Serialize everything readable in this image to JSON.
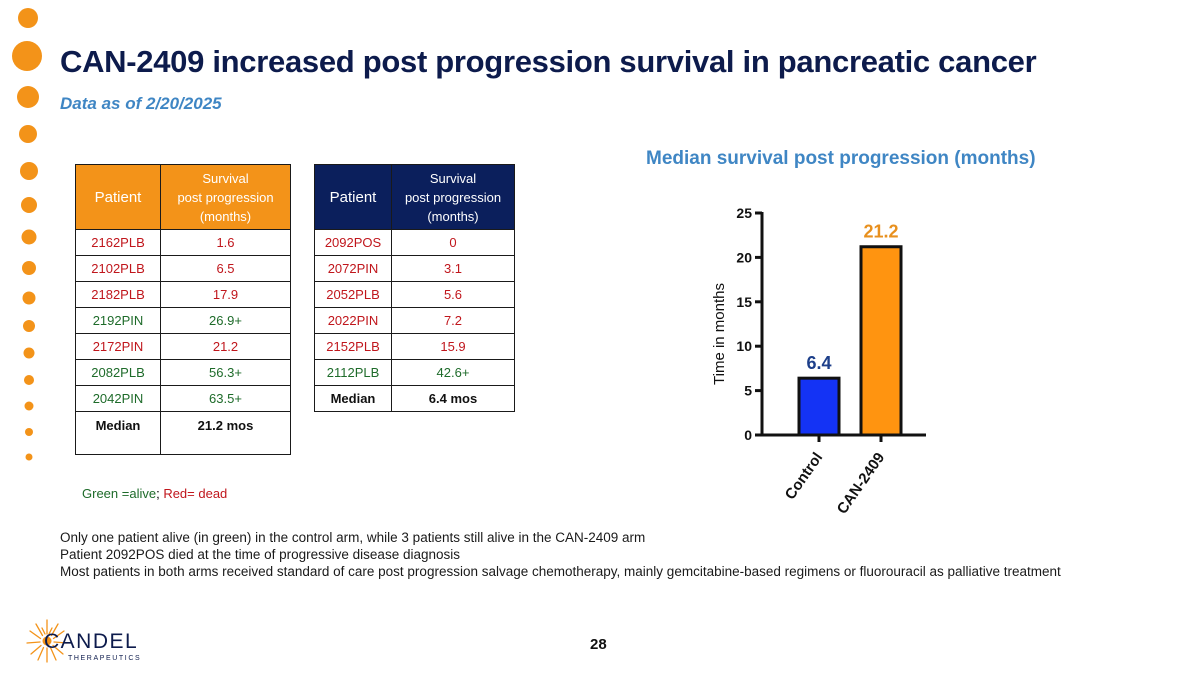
{
  "title": "CAN-2409 increased post progression survival in pancreatic cancer",
  "subtitle": "Data as of 2/20/2025",
  "tables": [
    {
      "header": {
        "patient": "Patient",
        "survival": [
          "Survival",
          "post progression",
          "(months)"
        ]
      },
      "rows": [
        {
          "patient": "2162PLB",
          "value": "1.6",
          "status": "dead"
        },
        {
          "patient": "2102PLB",
          "value": "6.5",
          "status": "dead"
        },
        {
          "patient": "2182PLB",
          "value": "17.9",
          "status": "dead"
        },
        {
          "patient": "2192PIN",
          "value": "26.9+",
          "status": "alive"
        },
        {
          "patient": "2172PIN",
          "value": "21.2",
          "status": "dead"
        },
        {
          "patient": "2082PLB",
          "value": "56.3+",
          "status": "alive"
        },
        {
          "patient": "2042PIN",
          "value": "63.5+",
          "status": "alive"
        }
      ],
      "median": {
        "label": "Median",
        "value": "21.2 mos"
      }
    },
    {
      "header": {
        "patient": "Patient",
        "survival": [
          "Survival",
          "post progression",
          "(months)"
        ]
      },
      "rows": [
        {
          "patient": "2092POS",
          "value": "0",
          "status": "dead"
        },
        {
          "patient": "2072PIN",
          "value": "3.1",
          "status": "dead"
        },
        {
          "patient": "2052PLB",
          "value": "5.6",
          "status": "dead"
        },
        {
          "patient": "2022PIN",
          "value": "7.2",
          "status": "dead"
        },
        {
          "patient": "2152PLB",
          "value": "15.9",
          "status": "dead"
        },
        {
          "patient": "2112PLB",
          "value": "42.6+",
          "status": "alive"
        }
      ],
      "median": {
        "label": "Median",
        "value": "6.4  mos"
      }
    }
  ],
  "legend": {
    "alive": "Green =alive",
    "sep": ";",
    "dead": " Red= dead"
  },
  "notes": [
    "Only one patient alive (in green) in the control arm, while 3 patients still alive in the CAN-2409 arm",
    "Patient 2092POS died at the time of progressive disease diagnosis",
    "Most patients in both arms received standard of care post progression salvage chemotherapy, mainly gemcitabine-based regimens or fluorouracil as palliative treatment"
  ],
  "page_number": "28",
  "logo": {
    "name": "CANDEL",
    "tagline": "THERAPEUTICS"
  },
  "colors": {
    "navy": "#0d1b4c",
    "orange": "#f39319",
    "blue": "#1433f5",
    "light_blue": "#3f86c4",
    "alive": "#1e6b2a",
    "dead": "#c0161c"
  },
  "chart_data": {
    "type": "bar",
    "title": "Median survival post progression (months)",
    "ylabel": "Time in months",
    "xlabel": "",
    "categories": [
      "Control",
      "CAN-2409"
    ],
    "values": [
      6.4,
      21.2
    ],
    "value_labels": [
      "6.4",
      "21.2"
    ],
    "bar_colors": [
      "#1433f5",
      "#ff9410"
    ],
    "label_colors": [
      "#1d3f8a",
      "#e8901e"
    ],
    "ylim": [
      0,
      25
    ],
    "yticks": [
      0,
      5,
      10,
      15,
      20,
      25
    ],
    "grid": false
  }
}
